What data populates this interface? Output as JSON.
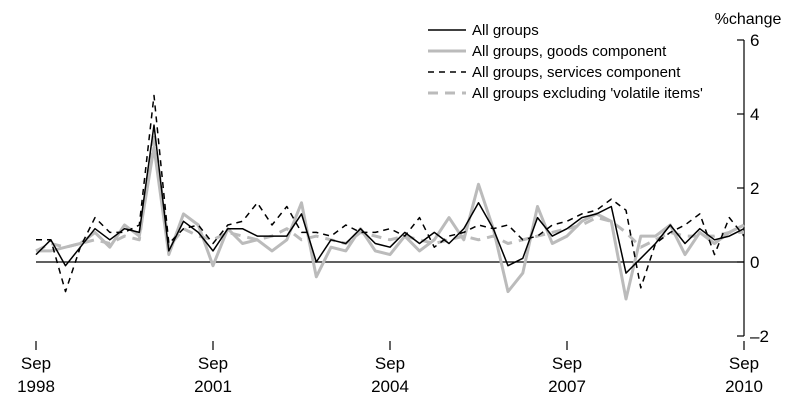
{
  "chart_data": {
    "type": "line",
    "title": "",
    "xlabel": "",
    "ylabel": "%change",
    "ylim": [
      -2,
      6
    ],
    "yticks": [
      -2,
      0,
      2,
      4,
      6
    ],
    "ytick_labels": [
      "–2",
      "0",
      "2",
      "4",
      "6"
    ],
    "y_axis_side": "right",
    "xlim": [
      "Sep 1998",
      "Sep 2010"
    ],
    "xticks": [
      {
        "x": "Sep 1998",
        "month": "Sep",
        "year": "1998"
      },
      {
        "x": "Sep 2001",
        "month": "Sep",
        "year": "2001"
      },
      {
        "x": "Sep 2004",
        "month": "Sep",
        "year": "2004"
      },
      {
        "x": "Sep 2007",
        "month": "Sep",
        "year": "2007"
      },
      {
        "x": "Sep 2010",
        "month": "Sep",
        "year": "2010"
      }
    ],
    "grid": false,
    "legend_position": "top-right",
    "x": [
      "Sep 1998",
      "Dec 1998",
      "Mar 1999",
      "Jun 1999",
      "Sep 1999",
      "Dec 1999",
      "Mar 2000",
      "Jun 2000",
      "Sep 2000",
      "Dec 2000",
      "Mar 2001",
      "Jun 2001",
      "Sep 2001",
      "Dec 2001",
      "Mar 2002",
      "Jun 2002",
      "Sep 2002",
      "Dec 2002",
      "Mar 2003",
      "Jun 2003",
      "Sep 2003",
      "Dec 2003",
      "Mar 2004",
      "Jun 2004",
      "Sep 2004",
      "Dec 2004",
      "Mar 2005",
      "Jun 2005",
      "Sep 2005",
      "Dec 2005",
      "Mar 2006",
      "Jun 2006",
      "Sep 2006",
      "Dec 2006",
      "Mar 2007",
      "Jun 2007",
      "Sep 2007",
      "Dec 2007",
      "Mar 2008",
      "Jun 2008",
      "Sep 2008",
      "Dec 2008",
      "Mar 2009",
      "Jun 2009",
      "Sep 2009",
      "Dec 2009",
      "Mar 2010",
      "Jun 2010",
      "Sep 2010"
    ],
    "series": [
      {
        "name": "All groups",
        "color": "#000000",
        "dash": "solid",
        "values": [
          0.2,
          0.6,
          -0.1,
          0.4,
          0.9,
          0.6,
          0.9,
          0.8,
          3.7,
          0.3,
          1.1,
          0.8,
          0.3,
          0.9,
          0.9,
          0.7,
          0.7,
          0.7,
          1.3,
          0.0,
          0.6,
          0.5,
          0.9,
          0.5,
          0.4,
          0.8,
          0.5,
          0.8,
          0.5,
          0.9,
          1.6,
          0.9,
          -0.1,
          0.1,
          1.2,
          0.7,
          0.9,
          1.2,
          1.3,
          1.5,
          -0.3,
          0.1,
          0.5,
          1.0,
          0.5,
          0.9,
          0.6,
          0.7,
          0.9
        ]
      },
      {
        "name": "All groups, goods component",
        "color": "#bbbbbb",
        "dash": "solid",
        "values": [
          0.3,
          0.3,
          0.4,
          0.5,
          0.8,
          0.4,
          1.0,
          0.7,
          3.1,
          0.2,
          1.3,
          1.0,
          -0.1,
          0.9,
          0.5,
          0.6,
          0.3,
          0.6,
          1.6,
          -0.4,
          0.4,
          0.3,
          0.9,
          0.3,
          0.2,
          0.7,
          0.3,
          0.6,
          1.2,
          0.6,
          2.1,
          0.9,
          -0.8,
          -0.3,
          1.5,
          0.5,
          0.7,
          1.1,
          1.3,
          1.1,
          -1.0,
          0.7,
          0.7,
          1.0,
          0.2,
          0.8,
          0.5,
          0.8,
          1.0
        ]
      },
      {
        "name": "All groups, services component",
        "color": "#000000",
        "dash": "dashed",
        "values": [
          0.6,
          0.6,
          -0.8,
          0.4,
          1.2,
          0.8,
          0.8,
          1.0,
          4.5,
          0.5,
          0.9,
          1.0,
          0.5,
          1.0,
          1.1,
          1.6,
          1.0,
          1.5,
          0.8,
          0.8,
          0.7,
          1.0,
          0.8,
          0.8,
          0.9,
          0.7,
          1.2,
          0.4,
          0.7,
          0.8,
          1.0,
          0.9,
          1.0,
          0.6,
          0.7,
          1.0,
          1.1,
          1.3,
          1.4,
          1.7,
          1.4,
          -0.7,
          0.5,
          0.8,
          1.0,
          1.3,
          0.2,
          1.2,
          0.7
        ]
      },
      {
        "name": "All groups excluding 'volatile items'",
        "color": "#bbbbbb",
        "dash": "dashed",
        "values": [
          0.3,
          0.5,
          0.4,
          0.5,
          0.6,
          0.5,
          0.7,
          0.6,
          3.5,
          0.4,
          0.9,
          0.7,
          0.6,
          0.8,
          0.7,
          0.6,
          0.7,
          0.9,
          0.6,
          0.7,
          0.6,
          0.5,
          0.8,
          0.7,
          0.6,
          0.7,
          0.6,
          0.5,
          0.6,
          0.7,
          0.6,
          0.7,
          0.5,
          0.6,
          0.7,
          0.8,
          0.9,
          1.0,
          1.2,
          1.1,
          0.8,
          0.4,
          0.6,
          0.8,
          0.7,
          0.7,
          0.7,
          0.8,
          0.8
        ]
      }
    ]
  }
}
